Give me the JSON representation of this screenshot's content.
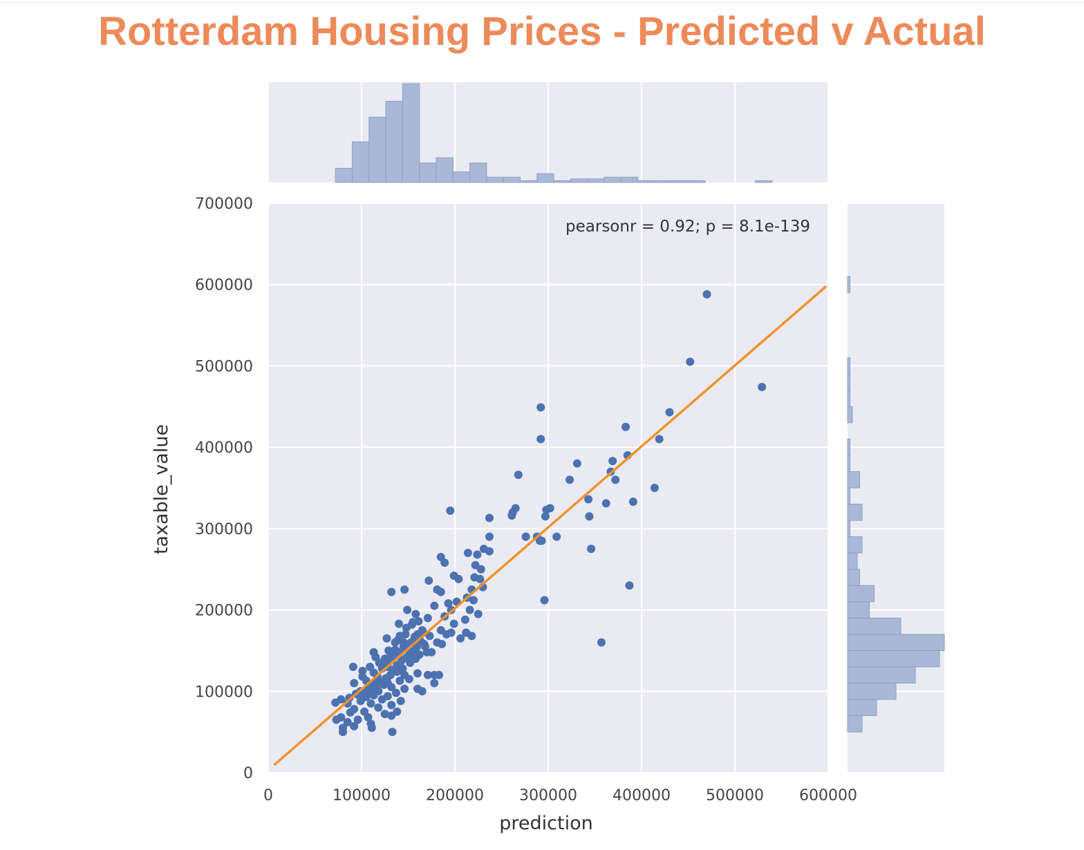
{
  "chart_data": {
    "type": "scatter",
    "title": "Rotterdam Housing Prices - Predicted v Actual",
    "xlabel": "prediction",
    "ylabel": "taxable_value",
    "xlim": [
      0,
      600000
    ],
    "ylim": [
      0,
      700000
    ],
    "x_ticks": [
      "0",
      "100000",
      "200000",
      "300000",
      "400000",
      "500000",
      "600000"
    ],
    "y_ticks": [
      "0",
      "100000",
      "200000",
      "300000",
      "400000",
      "500000",
      "600000",
      "700000"
    ],
    "annotation": "pearsonr = 0.92; p = 8.1e-139",
    "grid": true,
    "colors": {
      "points": "#4c72b0",
      "fit_line": "#f0922d",
      "hist_fill": "#a9b8d6",
      "hist_edge": "#8e9fc4",
      "background": "#eaeaf2"
    },
    "fit_line": {
      "x": [
        7000,
        597000
      ],
      "y": [
        10000,
        597000
      ]
    },
    "points": [
      [
        470000,
        588000
      ],
      [
        452000,
        505000
      ],
      [
        529000,
        474000
      ],
      [
        292000,
        449000
      ],
      [
        430000,
        443000
      ],
      [
        383000,
        425000
      ],
      [
        419000,
        410000
      ],
      [
        292000,
        410000
      ],
      [
        385000,
        390000
      ],
      [
        331000,
        380000
      ],
      [
        369000,
        383000
      ],
      [
        367000,
        370000
      ],
      [
        268000,
        366000
      ],
      [
        372000,
        360000
      ],
      [
        323000,
        360000
      ],
      [
        414000,
        350000
      ],
      [
        343000,
        336000
      ],
      [
        362000,
        331000
      ],
      [
        391000,
        333000
      ],
      [
        302000,
        325000
      ],
      [
        298000,
        323000
      ],
      [
        265000,
        325000
      ],
      [
        262000,
        320000
      ],
      [
        297000,
        315000
      ],
      [
        344000,
        315000
      ],
      [
        195000,
        322000
      ],
      [
        237000,
        313000
      ],
      [
        261000,
        316000
      ],
      [
        237000,
        290000
      ],
      [
        276000,
        290000
      ],
      [
        288000,
        290000
      ],
      [
        309000,
        290000
      ],
      [
        293000,
        285000
      ],
      [
        291000,
        285000
      ],
      [
        346000,
        275000
      ],
      [
        231000,
        275000
      ],
      [
        237000,
        272000
      ],
      [
        214000,
        270000
      ],
      [
        224000,
        268000
      ],
      [
        185000,
        265000
      ],
      [
        189000,
        258000
      ],
      [
        222000,
        255000
      ],
      [
        228000,
        250000
      ],
      [
        199000,
        242000
      ],
      [
        204000,
        238000
      ],
      [
        221000,
        240000
      ],
      [
        227000,
        238000
      ],
      [
        172000,
        236000
      ],
      [
        387000,
        230000
      ],
      [
        230000,
        228000
      ],
      [
        218000,
        225000
      ],
      [
        181000,
        225000
      ],
      [
        185000,
        222000
      ],
      [
        132000,
        222000
      ],
      [
        146000,
        225000
      ],
      [
        213000,
        215000
      ],
      [
        220000,
        212000
      ],
      [
        296000,
        212000
      ],
      [
        193000,
        208000
      ],
      [
        202000,
        210000
      ],
      [
        178000,
        205000
      ],
      [
        196000,
        200000
      ],
      [
        216000,
        200000
      ],
      [
        149000,
        200000
      ],
      [
        225000,
        195000
      ],
      [
        189000,
        192000
      ],
      [
        171000,
        190000
      ],
      [
        211000,
        188000
      ],
      [
        158000,
        195000
      ],
      [
        199000,
        183000
      ],
      [
        155000,
        185000
      ],
      [
        140000,
        183000
      ],
      [
        185000,
        175000
      ],
      [
        196000,
        172000
      ],
      [
        212000,
        172000
      ],
      [
        165000,
        175000
      ],
      [
        191000,
        170000
      ],
      [
        218000,
        168000
      ],
      [
        173000,
        168000
      ],
      [
        206000,
        165000
      ],
      [
        148000,
        178000
      ],
      [
        160000,
        170000
      ],
      [
        141000,
        168000
      ],
      [
        127000,
        165000
      ],
      [
        153000,
        160000
      ],
      [
        157000,
        158000
      ],
      [
        181000,
        160000
      ],
      [
        186000,
        158000
      ],
      [
        357000,
        160000
      ],
      [
        136000,
        160000
      ],
      [
        145000,
        155000
      ],
      [
        168000,
        155000
      ],
      [
        129000,
        150000
      ],
      [
        175000,
        148000
      ],
      [
        113000,
        148000
      ],
      [
        141000,
        148000
      ],
      [
        162000,
        145000
      ],
      [
        150000,
        143000
      ],
      [
        158000,
        140000
      ],
      [
        125000,
        140000
      ],
      [
        135000,
        142000
      ],
      [
        115000,
        142000
      ],
      [
        131000,
        138000
      ],
      [
        119000,
        135000
      ],
      [
        152000,
        135000
      ],
      [
        170000,
        148000
      ],
      [
        141000,
        133000
      ],
      [
        128000,
        130000
      ],
      [
        109000,
        130000
      ],
      [
        91000,
        130000
      ],
      [
        122000,
        128000
      ],
      [
        101000,
        125000
      ],
      [
        138000,
        124000
      ],
      [
        113000,
        123000
      ],
      [
        160000,
        122000
      ],
      [
        146000,
        120000
      ],
      [
        131000,
        120000
      ],
      [
        117000,
        118000
      ],
      [
        101000,
        118000
      ],
      [
        127000,
        115000
      ],
      [
        105000,
        113000
      ],
      [
        178000,
        120000
      ],
      [
        183000,
        120000
      ],
      [
        171000,
        120000
      ],
      [
        151000,
        115000
      ],
      [
        141000,
        113000
      ],
      [
        92000,
        110000
      ],
      [
        114000,
        110000
      ],
      [
        124000,
        108000
      ],
      [
        178000,
        110000
      ],
      [
        108000,
        105000
      ],
      [
        132000,
        105000
      ],
      [
        160000,
        103000
      ],
      [
        146000,
        103000
      ],
      [
        99000,
        100000
      ],
      [
        118000,
        100000
      ],
      [
        165000,
        100000
      ],
      [
        137000,
        98000
      ],
      [
        94000,
        97000
      ],
      [
        113000,
        95000
      ],
      [
        128000,
        94000
      ],
      [
        87000,
        92000
      ],
      [
        105000,
        93000
      ],
      [
        78000,
        90000
      ],
      [
        122000,
        90000
      ],
      [
        142000,
        88000
      ],
      [
        99000,
        88000
      ],
      [
        72000,
        86000
      ],
      [
        110000,
        85000
      ],
      [
        85000,
        85000
      ],
      [
        132000,
        83000
      ],
      [
        118000,
        80000
      ],
      [
        92000,
        78000
      ],
      [
        103000,
        75000
      ],
      [
        88000,
        74000
      ],
      [
        138000,
        75000
      ],
      [
        125000,
        72000
      ],
      [
        78000,
        68000
      ],
      [
        107000,
        68000
      ],
      [
        96000,
        65000
      ],
      [
        132000,
        70000
      ],
      [
        73000,
        65000
      ],
      [
        85000,
        62000
      ],
      [
        110000,
        60000
      ],
      [
        92000,
        57000
      ],
      [
        80000,
        55000
      ],
      [
        111000,
        55000
      ],
      [
        80000,
        50000
      ],
      [
        133000,
        50000
      ],
      [
        139000,
        163000
      ],
      [
        147000,
        170000
      ],
      [
        155000,
        150000
      ],
      [
        163000,
        162000
      ],
      [
        150000,
        152000
      ],
      [
        138000,
        132000
      ],
      [
        144000,
        128000
      ],
      [
        131000,
        144000
      ],
      [
        123000,
        134000
      ],
      [
        157000,
        167000
      ],
      [
        166000,
        172000
      ],
      [
        154000,
        182000
      ],
      [
        161000,
        186000
      ],
      [
        143000,
        138000
      ],
      [
        134000,
        126000
      ],
      [
        119000,
        112000
      ],
      [
        106000,
        101000
      ],
      [
        97000,
        95000
      ],
      [
        116000,
        104000
      ],
      [
        126000,
        116000
      ],
      [
        148000,
        141000
      ],
      [
        153000,
        146000
      ],
      [
        136000,
        151000
      ],
      [
        145000,
        160000
      ],
      [
        159000,
        154000
      ],
      [
        167000,
        158000
      ],
      [
        142000,
        126000
      ],
      [
        128000,
        110000
      ],
      [
        112000,
        98000
      ]
    ],
    "marginal_x_hist": {
      "bin_start": 72000,
      "bin_width": 18000,
      "counts": [
        8,
        23,
        37,
        46,
        56,
        11,
        14,
        6,
        11,
        3,
        3,
        1,
        5,
        1,
        2,
        2,
        3,
        3,
        1,
        1,
        1,
        1,
        0,
        0,
        0,
        1
      ]
    },
    "marginal_y_hist": {
      "bin_start": 50000,
      "bin_width": 20000,
      "counts": [
        6,
        12,
        20,
        28,
        38,
        40,
        22,
        9,
        11,
        5,
        4,
        6,
        1,
        6,
        1,
        5,
        1,
        1,
        0,
        2,
        1,
        1,
        1,
        0,
        0,
        0,
        0,
        1
      ]
    }
  }
}
